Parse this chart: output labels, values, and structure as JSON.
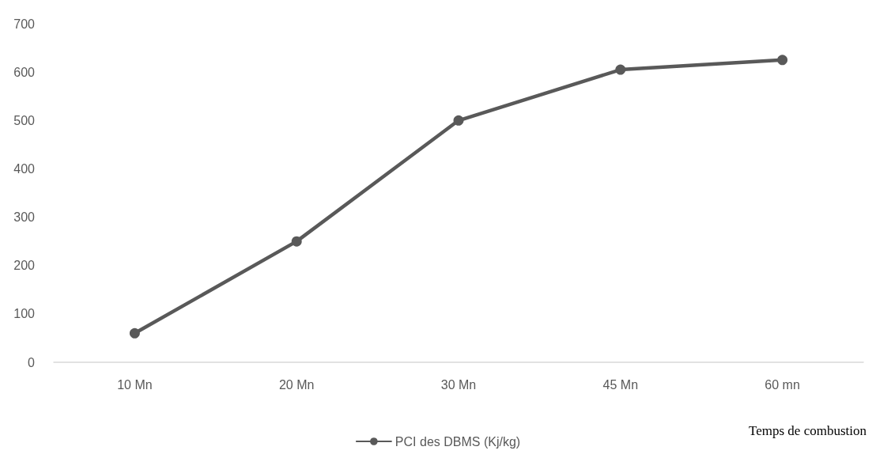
{
  "chart_data": {
    "type": "line",
    "xlabel": "Temps de combustion",
    "categories": [
      "10 Mn",
      "20 Mn",
      "30 Mn",
      "45 Mn",
      "60 mn"
    ],
    "series": [
      {
        "name": "PCI des DBMS (Kj/kg)",
        "color": "#595959",
        "values": [
          60,
          250,
          500,
          605,
          625
        ]
      }
    ],
    "ylim": [
      0,
      700
    ],
    "yticks": [
      0,
      100,
      200,
      300,
      400,
      500,
      600,
      700
    ],
    "grid": false,
    "legend": "bottom",
    "marker": "circle",
    "line_style": "solid"
  }
}
